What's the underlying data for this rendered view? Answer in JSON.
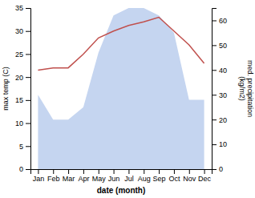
{
  "chart_data": {
    "type": "line",
    "xlabel": "date (month)",
    "ylabel": "max temp (C)",
    "y2label": "med. precipitation\n(kg/m2)",
    "categories": [
      "Jan",
      "Feb",
      "Mar",
      "Apr",
      "May",
      "Jun",
      "Jul",
      "Aug",
      "Sep",
      "Oct",
      "Nov",
      "Dec"
    ],
    "series": [
      {
        "type": "area",
        "axis": "y2",
        "color": "#c5d5f0",
        "values": [
          30,
          20,
          20,
          25,
          47,
          62,
          65,
          65,
          62,
          55,
          28,
          28
        ]
      },
      {
        "type": "line",
        "color": "#c0504d",
        "values": [
          21.5,
          22.0,
          22.0,
          25.0,
          28.5,
          30.0,
          31.2,
          32.0,
          33.0,
          30.0,
          27.0,
          23.0
        ]
      }
    ],
    "ylim": [
      0,
      35
    ],
    "yticks": [
      0,
      5,
      10,
      15,
      20,
      25,
      30,
      35
    ],
    "y2lim": [
      0,
      65
    ],
    "y2ticks": [
      0,
      10,
      20,
      30,
      40,
      50,
      60
    ],
    "grid": false
  }
}
